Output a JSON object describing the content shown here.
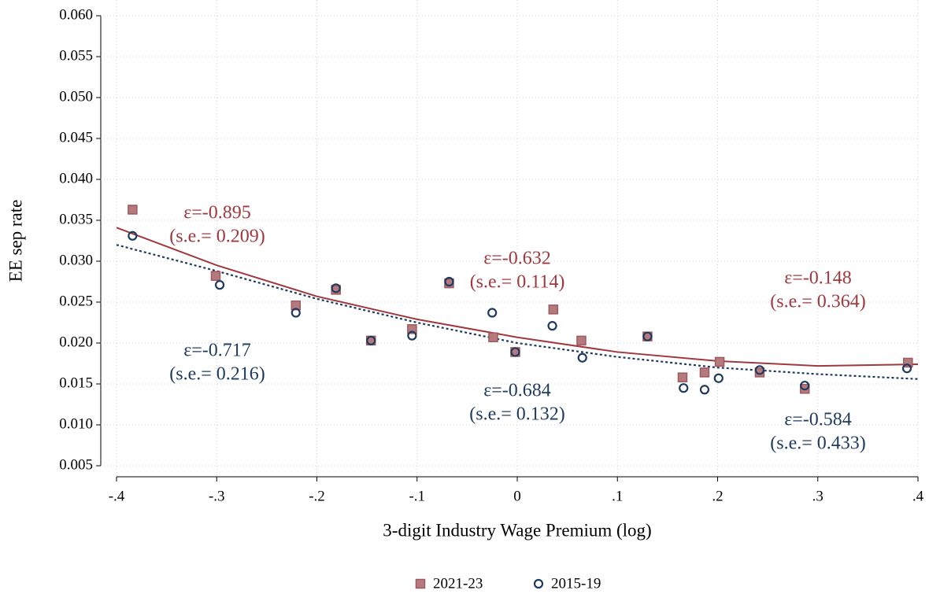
{
  "chart_data": {
    "type": "scatter",
    "x_label": "3-digit Industry Wage Premium (log)",
    "y_label": "EE sep rate",
    "xlim": [
      -0.4,
      0.4
    ],
    "ylim": [
      0.005,
      0.06
    ],
    "xticks": [
      {
        "value": -0.4,
        "label": "-.4"
      },
      {
        "value": -0.3,
        "label": "-.3"
      },
      {
        "value": -0.2,
        "label": "-.2"
      },
      {
        "value": -0.1,
        "label": "-.1"
      },
      0,
      {
        "value": 0.1,
        "label": ".1"
      },
      {
        "value": 0.2,
        "label": ".2"
      },
      {
        "value": 0.3,
        "label": ".3"
      },
      {
        "value": 0.4,
        "label": ".4"
      }
    ],
    "yticks": [
      {
        "value": 0.005,
        "label": "0.005"
      },
      {
        "value": 0.01,
        "label": "0.010"
      },
      {
        "value": 0.015,
        "label": "0.015"
      },
      {
        "value": 0.02,
        "label": "0.020"
      },
      {
        "value": 0.025,
        "label": "0.025"
      },
      {
        "value": 0.03,
        "label": "0.030"
      },
      {
        "value": 0.035,
        "label": "0.035"
      },
      {
        "value": 0.04,
        "label": "0.040"
      },
      {
        "value": 0.045,
        "label": "0.045"
      },
      {
        "value": 0.05,
        "label": "0.050"
      },
      {
        "value": 0.055,
        "label": "0.055"
      },
      {
        "value": 0.06,
        "label": "0.060"
      }
    ],
    "grid": true,
    "legend": "bottom",
    "series": [
      {
        "name": "2021-23",
        "marker": "square",
        "color": "#b57a7e",
        "edge": "#9e5a5e",
        "x": [
          -0.384,
          -0.301,
          -0.221,
          -0.181,
          -0.146,
          -0.105,
          -0.068,
          -0.024,
          -0.002,
          0.036,
          0.064,
          0.13,
          0.165,
          0.187,
          0.202,
          0.242,
          0.287,
          0.39
        ],
        "values": [
          0.0363,
          0.0282,
          0.0246,
          0.0265,
          0.0203,
          0.0217,
          0.0273,
          0.0207,
          0.0189,
          0.0241,
          0.0203,
          0.0208,
          0.0158,
          0.0164,
          0.0177,
          0.0164,
          0.0144,
          0.0176
        ]
      },
      {
        "name": "2015-19",
        "marker": "circle",
        "color": "#1f3a5f",
        "edge": "#1f3a5f",
        "x": [
          -0.384,
          -0.297,
          -0.221,
          -0.181,
          -0.146,
          -0.105,
          -0.068,
          -0.025,
          -0.002,
          0.035,
          0.065,
          0.13,
          0.166,
          0.187,
          0.201,
          0.242,
          0.287,
          0.389
        ],
        "values": [
          0.0331,
          0.0271,
          0.0237,
          0.0267,
          0.0203,
          0.0209,
          0.0275,
          0.0237,
          0.0189,
          0.0221,
          0.0182,
          0.0208,
          0.0145,
          0.0143,
          0.0157,
          0.0167,
          0.0148,
          0.0169
        ]
      }
    ],
    "fit_lines": [
      {
        "color": "#a0393e",
        "dashed": false,
        "x": [
          -0.4,
          -0.3,
          -0.2,
          -0.1,
          0,
          0.1,
          0.2,
          0.3,
          0.4
        ],
        "values": [
          0.0341,
          0.0295,
          0.0257,
          0.0229,
          0.0207,
          0.0189,
          0.0178,
          0.0172,
          0.0174
        ]
      },
      {
        "color": "#1f3a5f",
        "dashed": true,
        "x": [
          -0.4,
          -0.3,
          -0.2,
          -0.1,
          0,
          0.1,
          0.2,
          0.3,
          0.4
        ],
        "values": [
          0.032,
          0.0288,
          0.0254,
          0.0225,
          0.02,
          0.0183,
          0.017,
          0.0162,
          0.0156
        ]
      }
    ],
    "annotations": [
      {
        "color": "#a0393e",
        "lines": [
          "ε=-0.895",
          "(s.e.= 0.209)"
        ]
      },
      {
        "color": "#a0393e",
        "lines": [
          "ε=-0.632",
          "(s.e.= 0.114)"
        ]
      },
      {
        "color": "#a0393e",
        "lines": [
          "ε=-0.148",
          "(s.e.= 0.364)"
        ]
      },
      {
        "color": "#1f3a5f",
        "lines": [
          "ε=-0.717",
          "(s.e.= 0.216)"
        ]
      },
      {
        "color": "#1f3a5f",
        "lines": [
          "ε=-0.684",
          "(s.e.= 0.132)"
        ]
      },
      {
        "color": "#1f3a5f",
        "lines": [
          "ε=-0.584",
          "(s.e.= 0.433)"
        ]
      }
    ]
  }
}
